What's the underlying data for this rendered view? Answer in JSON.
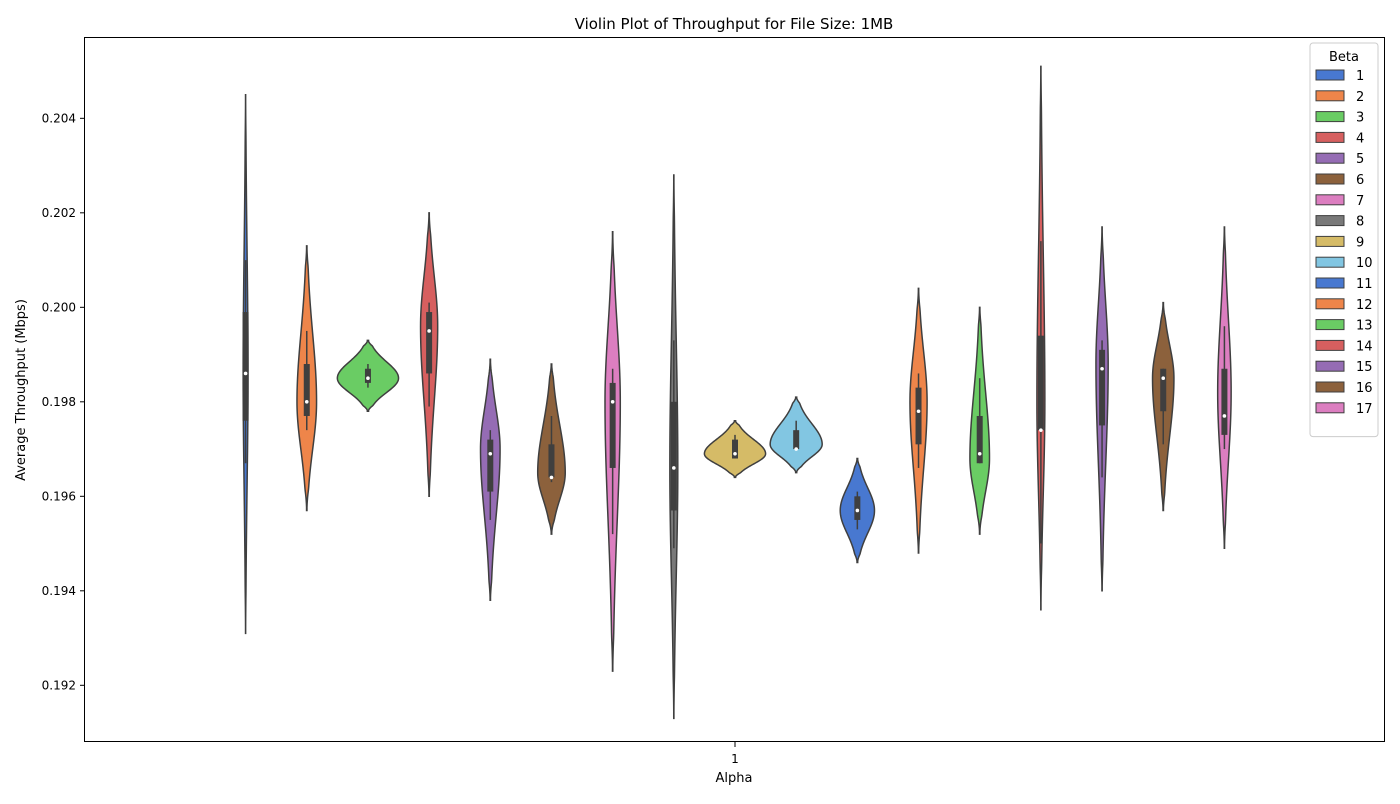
{
  "chart_data": {
    "type": "violin",
    "title": "Violin Plot of Throughput for File Size: 1MB",
    "xlabel": "Alpha",
    "ylabel": "Average Throughput (Mbps)",
    "x_categories": [
      "1"
    ],
    "ylim": [
      0.1908,
      0.2057
    ],
    "yticks": [
      0.192,
      0.194,
      0.196,
      0.198,
      0.2,
      0.202,
      0.204
    ],
    "ytick_labels": [
      "0.192",
      "0.194",
      "0.196",
      "0.198",
      "0.200",
      "0.202",
      "0.204"
    ],
    "grid": false,
    "legend": {
      "title": "Beta",
      "position": "top-right",
      "entries": [
        "1",
        "2",
        "3",
        "4",
        "5",
        "6",
        "7",
        "8",
        "9",
        "10",
        "11",
        "12",
        "13",
        "14",
        "15",
        "16",
        "17"
      ]
    },
    "palette": [
      "#4878d0",
      "#ee854a",
      "#6acc64",
      "#d65f5f",
      "#956cb4",
      "#8c613c",
      "#dc7ec0",
      "#797979",
      "#d5bb67",
      "#82c6e2"
    ],
    "series": [
      {
        "name": "1",
        "color": "#4878d0",
        "min": 0.1931,
        "max": 0.2045,
        "q1": 0.1976,
        "median": 0.1986,
        "q3": 0.1999,
        "whisker_low": 0.1967,
        "whisker_high": 0.201,
        "peak": 0.1986,
        "width": 0.08
      },
      {
        "name": "2",
        "color": "#ee854a",
        "min": 0.1957,
        "max": 0.2013,
        "q1": 0.1977,
        "median": 0.198,
        "q3": 0.1988,
        "whisker_low": 0.1974,
        "whisker_high": 0.1995,
        "peak": 0.198,
        "width": 0.32
      },
      {
        "name": "3",
        "color": "#6acc64",
        "min": 0.1978,
        "max": 0.1993,
        "q1": 0.1984,
        "median": 0.1985,
        "q3": 0.1987,
        "whisker_low": 0.1983,
        "whisker_high": 0.1988,
        "peak": 0.1985,
        "width": 1.0
      },
      {
        "name": "4",
        "color": "#d65f5f",
        "min": 0.196,
        "max": 0.202,
        "q1": 0.1986,
        "median": 0.1995,
        "q3": 0.1999,
        "whisker_low": 0.1979,
        "whisker_high": 0.2001,
        "peak": 0.1996,
        "width": 0.28
      },
      {
        "name": "5",
        "color": "#956cb4",
        "min": 0.1938,
        "max": 0.1989,
        "q1": 0.1961,
        "median": 0.1969,
        "q3": 0.1972,
        "whisker_low": 0.1955,
        "whisker_high": 0.1974,
        "peak": 0.197,
        "width": 0.32
      },
      {
        "name": "6",
        "color": "#8c613c",
        "min": 0.1952,
        "max": 0.1988,
        "q1": 0.1964,
        "median": 0.1964,
        "q3": 0.1971,
        "whisker_low": 0.1963,
        "whisker_high": 0.1977,
        "peak": 0.1965,
        "width": 0.45
      },
      {
        "name": "7",
        "color": "#dc7ec0",
        "min": 0.1923,
        "max": 0.2016,
        "q1": 0.1966,
        "median": 0.198,
        "q3": 0.1984,
        "whisker_low": 0.1952,
        "whisker_high": 0.1987,
        "peak": 0.198,
        "width": 0.25
      },
      {
        "name": "8",
        "color": "#797979",
        "min": 0.1913,
        "max": 0.2028,
        "q1": 0.1957,
        "median": 0.1966,
        "q3": 0.198,
        "whisker_low": 0.1949,
        "whisker_high": 0.1993,
        "peak": 0.1966,
        "width": 0.13
      },
      {
        "name": "9",
        "color": "#d5bb67",
        "min": 0.1964,
        "max": 0.1976,
        "q1": 0.1968,
        "median": 0.1969,
        "q3": 0.1972,
        "whisker_low": 0.1968,
        "whisker_high": 0.1973,
        "peak": 0.1969,
        "width": 1.0
      },
      {
        "name": "10",
        "color": "#82c6e2",
        "min": 0.1965,
        "max": 0.1981,
        "q1": 0.197,
        "median": 0.197,
        "q3": 0.1974,
        "whisker_low": 0.197,
        "whisker_high": 0.1976,
        "peak": 0.1971,
        "width": 0.85
      },
      {
        "name": "11",
        "color": "#4878d0",
        "min": 0.1946,
        "max": 0.1968,
        "q1": 0.1955,
        "median": 0.1957,
        "q3": 0.196,
        "whisker_low": 0.1953,
        "whisker_high": 0.1961,
        "peak": 0.1957,
        "width": 0.56
      },
      {
        "name": "12",
        "color": "#ee854a",
        "min": 0.1948,
        "max": 0.2004,
        "q1": 0.1971,
        "median": 0.1978,
        "q3": 0.1983,
        "whisker_low": 0.1966,
        "whisker_high": 0.1986,
        "peak": 0.198,
        "width": 0.28
      },
      {
        "name": "13",
        "color": "#6acc64",
        "min": 0.1952,
        "max": 0.2,
        "q1": 0.1967,
        "median": 0.1969,
        "q3": 0.1977,
        "whisker_low": 0.1967,
        "whisker_high": 0.1985,
        "peak": 0.1968,
        "width": 0.32
      },
      {
        "name": "14",
        "color": "#d65f5f",
        "min": 0.1936,
        "max": 0.2051,
        "q1": 0.1974,
        "median": 0.1974,
        "q3": 0.1994,
        "whisker_low": 0.195,
        "whisker_high": 0.2014,
        "peak": 0.198,
        "width": 0.13
      },
      {
        "name": "15",
        "color": "#956cb4",
        "min": 0.194,
        "max": 0.2017,
        "q1": 0.1975,
        "median": 0.1987,
        "q3": 0.1991,
        "whisker_low": 0.1964,
        "whisker_high": 0.1993,
        "peak": 0.1988,
        "width": 0.2
      },
      {
        "name": "16",
        "color": "#8c613c",
        "min": 0.1957,
        "max": 0.2001,
        "q1": 0.1978,
        "median": 0.1985,
        "q3": 0.1987,
        "whisker_low": 0.1971,
        "whisker_high": 0.1987,
        "peak": 0.1985,
        "width": 0.35
      },
      {
        "name": "17",
        "color": "#dc7ec0",
        "min": 0.1949,
        "max": 0.2017,
        "q1": 0.1973,
        "median": 0.1977,
        "q3": 0.1987,
        "whisker_low": 0.197,
        "whisker_high": 0.1996,
        "peak": 0.1982,
        "width": 0.22
      }
    ]
  }
}
